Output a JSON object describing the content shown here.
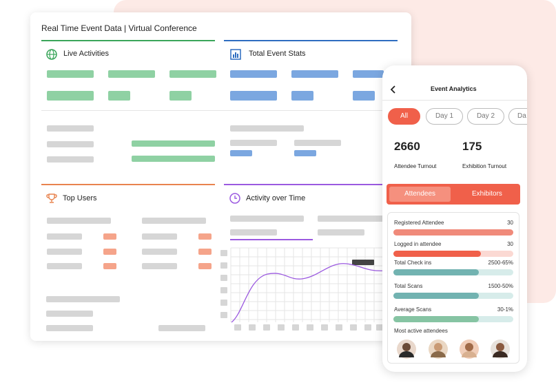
{
  "dashboard": {
    "title": "Real Time Event Data | Virtual Conference",
    "sections": [
      "Live Activities",
      "Total Event Stats",
      "Top Users",
      "Activity over Time"
    ]
  },
  "phone": {
    "title": "Event Analytics",
    "day_tabs": [
      "All",
      "Day 1",
      "Day 2",
      "Da"
    ],
    "stats": [
      {
        "value": 2660,
        "label": "Attendee Turnout"
      },
      {
        "value": 175,
        "label": "Exhibition Turnout"
      }
    ],
    "toggle": [
      "Attendees",
      "Exhibitors"
    ],
    "metrics": [
      {
        "label": "Registered Attendee",
        "value": "30"
      },
      {
        "label": "Logged in attendee",
        "value": "30"
      },
      {
        "label": "Total Check ins",
        "value": "2500-65%"
      },
      {
        "label": "Total Scans",
        "value": "1500-50%"
      },
      {
        "label": "Average Scans",
        "value": "30-1%"
      }
    ],
    "most_active": "Most active attendees"
  }
}
